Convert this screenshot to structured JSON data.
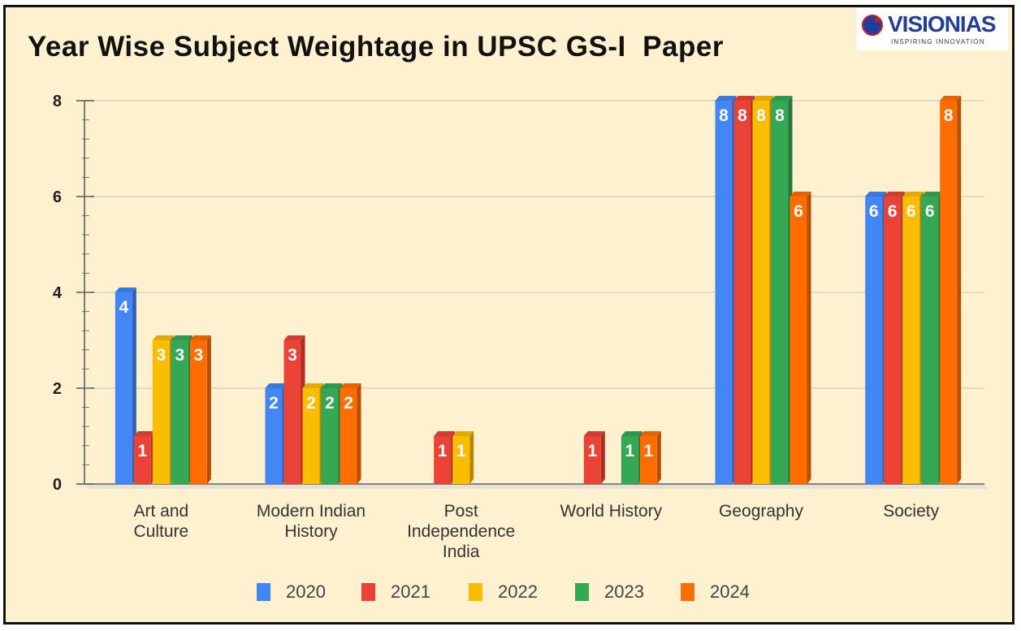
{
  "title": "Year Wise Subject Weightage in UPSC GS-I  Paper",
  "logo": {
    "name": "VISIONIAS",
    "tagline": "INSPIRING INNOVATION"
  },
  "chart_data": {
    "type": "bar",
    "title": "Year Wise Subject Weightage in UPSC GS-I  Paper",
    "xlabel": "",
    "ylabel": "",
    "ylim": [
      0,
      8
    ],
    "yticks": [
      0,
      2,
      4,
      6,
      8
    ],
    "grid": true,
    "legend_position": "bottom",
    "categories": [
      [
        "Art and",
        "Culture"
      ],
      [
        "Modern Indian",
        "History"
      ],
      [
        "Post",
        "Independence",
        "India"
      ],
      [
        "World History"
      ],
      [
        "Geography"
      ],
      [
        "Society"
      ]
    ],
    "series": [
      {
        "name": "2020",
        "color": "#4285f4",
        "values": [
          4,
          2,
          0,
          0,
          8,
          6
        ]
      },
      {
        "name": "2021",
        "color": "#ea4335",
        "values": [
          1,
          3,
          1,
          1,
          8,
          6
        ]
      },
      {
        "name": "2022",
        "color": "#fbbc04",
        "values": [
          3,
          2,
          1,
          0,
          8,
          6
        ]
      },
      {
        "name": "2023",
        "color": "#34a853",
        "values": [
          3,
          2,
          0,
          1,
          8,
          6
        ]
      },
      {
        "name": "2024",
        "color": "#ff6d01",
        "values": [
          3,
          2,
          0,
          1,
          6,
          8
        ]
      }
    ]
  }
}
